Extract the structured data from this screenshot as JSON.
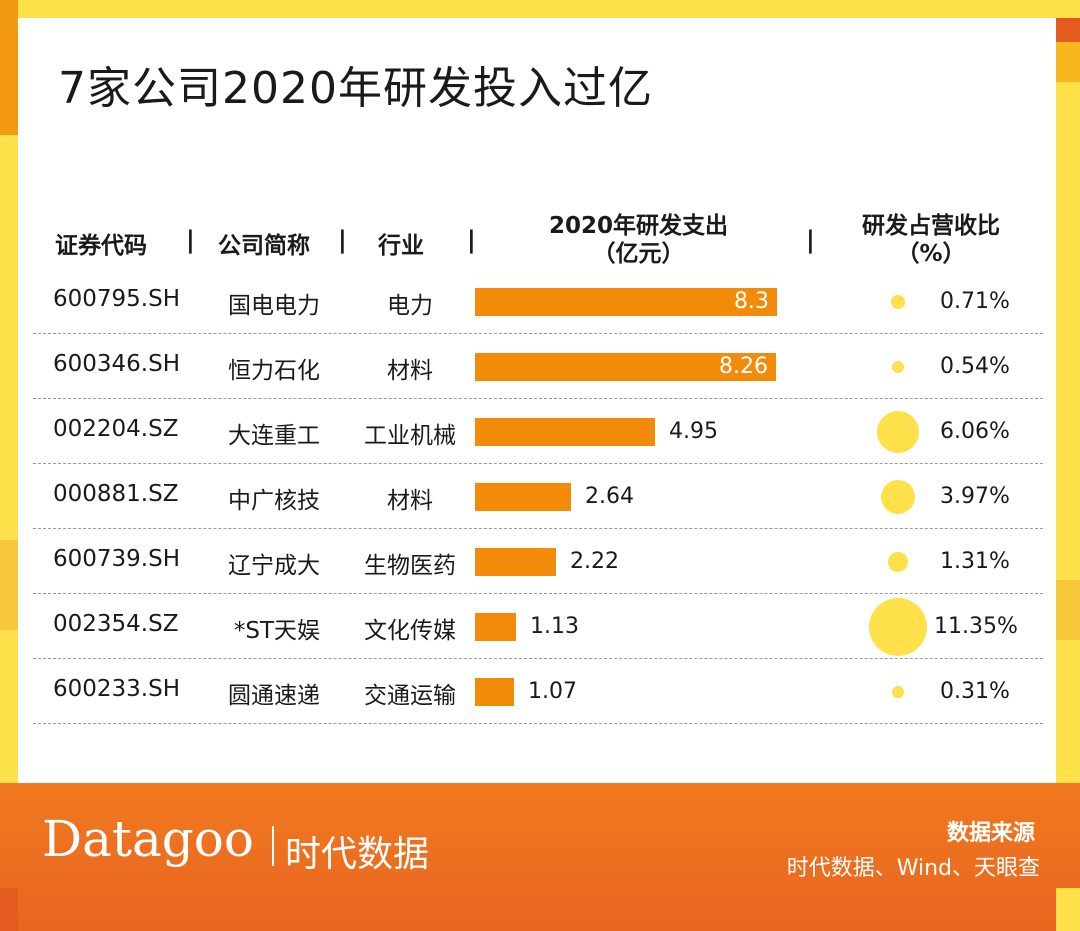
{
  "title": "7家公司2020年研发投入过亿",
  "headers": {
    "code": "证券代码",
    "name": "公司简称",
    "industry": "行业",
    "rd": "2020年研发支出",
    "rd_unit": "（亿元）",
    "ratio": "研发占营收比",
    "ratio_unit": "（%）",
    "sep": "|"
  },
  "colors": {
    "bar": "#f28a0a",
    "dot": "#fde04a",
    "footer": "#e96520"
  },
  "chart_data": {
    "type": "table",
    "columns": [
      "证券代码",
      "公司简称",
      "行业",
      "2020年研发支出（亿元）",
      "研发占营收比（%）"
    ],
    "rows": [
      {
        "code": "600795.SH",
        "name": "国电电力",
        "industry": "电力",
        "rd": 8.3,
        "rd_label": "8.3",
        "ratio": 0.71,
        "ratio_label": "0.71%"
      },
      {
        "code": "600346.SH",
        "name": "恒力石化",
        "industry": "材料",
        "rd": 8.26,
        "rd_label": "8.26",
        "ratio": 0.54,
        "ratio_label": "0.54%"
      },
      {
        "code": "002204.SZ",
        "name": "大连重工",
        "industry": "工业机械",
        "rd": 4.95,
        "rd_label": "4.95",
        "ratio": 6.06,
        "ratio_label": "6.06%"
      },
      {
        "code": "000881.SZ",
        "name": "中广核技",
        "industry": "材料",
        "rd": 2.64,
        "rd_label": "2.64",
        "ratio": 3.97,
        "ratio_label": "3.97%"
      },
      {
        "code": "600739.SH",
        "name": "辽宁成大",
        "industry": "生物医药",
        "rd": 2.22,
        "rd_label": "2.22",
        "ratio": 1.31,
        "ratio_label": "1.31%"
      },
      {
        "code": "002354.SZ",
        "name": "*ST天娱",
        "industry": "文化传媒",
        "rd": 1.13,
        "rd_label": "1.13",
        "ratio": 11.35,
        "ratio_label": "11.35%"
      },
      {
        "code": "600233.SH",
        "name": "圆通速递",
        "industry": "交通运输",
        "rd": 1.07,
        "rd_label": "1.07",
        "ratio": 0.31,
        "ratio_label": "0.31%"
      }
    ]
  },
  "footer": {
    "logo": "Datagoo",
    "logo_cn": "时代数据",
    "source_title": "数据来源",
    "source": "时代数据、Wind、天眼查"
  }
}
